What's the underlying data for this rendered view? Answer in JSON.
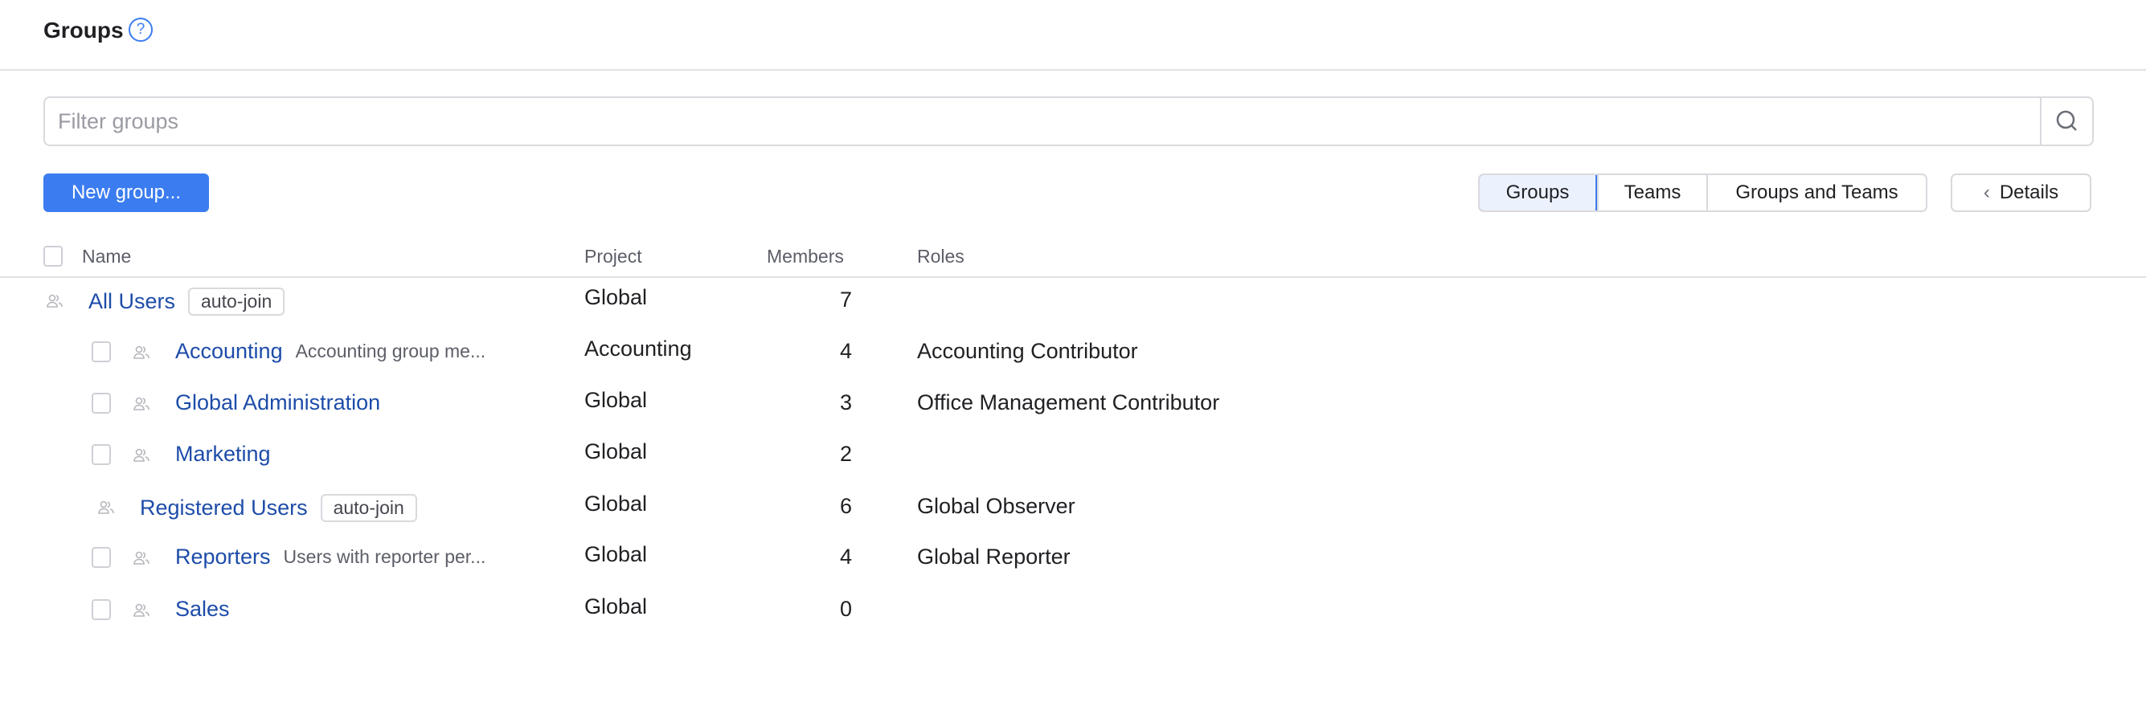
{
  "header": {
    "title": "Groups",
    "help_icon": "question-circle-icon"
  },
  "filter": {
    "placeholder": "Filter groups",
    "value": ""
  },
  "toolbar": {
    "new_group_label": "New group...",
    "view_tabs": [
      {
        "label": "Groups",
        "active": true
      },
      {
        "label": "Teams",
        "active": false
      },
      {
        "label": "Groups and Teams",
        "active": false
      }
    ],
    "details_label": "Details"
  },
  "table": {
    "columns": {
      "name": "Name",
      "project": "Project",
      "members": "Members",
      "roles": "Roles"
    },
    "rows": [
      {
        "name": "All Users",
        "tag": "auto-join",
        "description": "",
        "project": "Global",
        "members": "7",
        "roles": "",
        "level": 0,
        "checkbox": false
      },
      {
        "name": "Accounting",
        "tag": "",
        "description": "Accounting group me...",
        "project": "Accounting",
        "members": "4",
        "roles": "Accounting Contributor",
        "level": 1,
        "checkbox": true
      },
      {
        "name": "Global Administration",
        "tag": "",
        "description": "",
        "project": "Global",
        "members": "3",
        "roles": "Office Management Contributor",
        "level": 1,
        "checkbox": true
      },
      {
        "name": "Marketing",
        "tag": "",
        "description": "",
        "project": "Global",
        "members": "2",
        "roles": "",
        "level": 1,
        "checkbox": true
      },
      {
        "name": "Registered Users",
        "tag": "auto-join",
        "description": "",
        "project": "Global",
        "members": "6",
        "roles": "Global Observer",
        "level": 1,
        "checkbox": false
      },
      {
        "name": "Reporters",
        "tag": "",
        "description": "Users with reporter per...",
        "project": "Global",
        "members": "4",
        "roles": "Global Reporter",
        "level": 1,
        "checkbox": true
      },
      {
        "name": "Sales",
        "tag": "",
        "description": "",
        "project": "Global",
        "members": "0",
        "roles": "",
        "level": 1,
        "checkbox": true
      }
    ]
  },
  "colors": {
    "accent": "#3b7cf0",
    "link": "#1d4ca8",
    "border": "#d9d9de"
  }
}
